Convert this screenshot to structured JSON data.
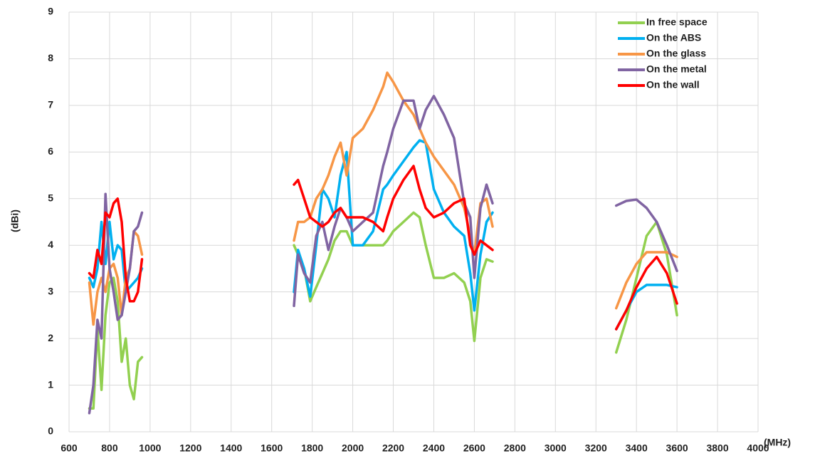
{
  "chart_data": {
    "type": "line",
    "x_label": "(MHz)",
    "y_label": "(dBi)",
    "xlim": [
      600,
      4000
    ],
    "xticks": [
      600,
      800,
      1000,
      1200,
      1400,
      1600,
      1800,
      2000,
      2200,
      2400,
      2600,
      2800,
      3000,
      3200,
      3400,
      3600,
      3800,
      4000
    ],
    "ylim": [
      0,
      9
    ],
    "yticks": [
      0,
      1,
      2,
      3,
      4,
      5,
      6,
      7,
      8,
      9
    ],
    "grid": true,
    "legend": "upper right",
    "x": [
      700,
      720,
      740,
      760,
      780,
      800,
      820,
      840,
      860,
      880,
      900,
      920,
      940,
      960,
      1300,
      1710,
      1730,
      1760,
      1790,
      1820,
      1850,
      1880,
      1910,
      1940,
      1970,
      2000,
      2050,
      2100,
      2150,
      2170,
      2200,
      2250,
      2300,
      2330,
      2360,
      2400,
      2450,
      2500,
      2550,
      2580,
      2600,
      2630,
      2660,
      2690,
      3000,
      3300,
      3350,
      3400,
      3450,
      3500,
      3550,
      3600
    ],
    "series": [
      {
        "name": "In free space",
        "color": "#92d050",
        "values": [
          0.5,
          0.5,
          2.2,
          0.9,
          2.5,
          3.2,
          3.3,
          2.8,
          1.5,
          2.0,
          1.0,
          0.7,
          1.5,
          1.6,
          null,
          4.0,
          3.8,
          3.5,
          2.8,
          3.1,
          3.4,
          3.7,
          4.1,
          4.3,
          4.3,
          4.0,
          4.0,
          4.0,
          4.0,
          4.1,
          4.3,
          4.5,
          4.7,
          4.6,
          4.0,
          3.3,
          3.3,
          3.4,
          3.2,
          2.8,
          1.95,
          3.3,
          3.7,
          3.65,
          null,
          1.7,
          2.4,
          3.3,
          4.2,
          4.5,
          3.8,
          2.5
        ]
      },
      {
        "name": "On the ABS",
        "color": "#00b0f0",
        "values": [
          3.3,
          3.1,
          3.5,
          4.5,
          3.6,
          4.5,
          3.7,
          4.0,
          3.9,
          3.0,
          3.1,
          3.2,
          3.3,
          3.5,
          null,
          3.0,
          3.9,
          3.5,
          2.9,
          4.0,
          5.2,
          5.0,
          4.6,
          5.5,
          6.0,
          4.0,
          4.0,
          4.3,
          5.2,
          5.3,
          5.5,
          5.8,
          6.1,
          6.25,
          6.2,
          5.2,
          4.7,
          4.4,
          4.2,
          3.4,
          2.6,
          3.8,
          4.5,
          4.7,
          null,
          2.2,
          2.6,
          3.0,
          3.15,
          3.15,
          3.15,
          3.1
        ]
      },
      {
        "name": "On the glass",
        "color": "#f79646",
        "values": [
          3.2,
          2.3,
          3.0,
          3.3,
          3.0,
          3.5,
          3.6,
          3.3,
          2.5,
          3.3,
          3.5,
          4.3,
          4.2,
          3.8,
          null,
          4.1,
          4.5,
          4.5,
          4.6,
          5.0,
          5.2,
          5.5,
          5.9,
          6.2,
          5.5,
          6.3,
          6.5,
          6.9,
          7.4,
          7.7,
          7.5,
          7.1,
          6.8,
          6.5,
          6.2,
          5.9,
          5.6,
          5.3,
          4.8,
          4.2,
          3.8,
          4.9,
          5.0,
          4.4,
          null,
          2.65,
          3.2,
          3.6,
          3.85,
          3.85,
          3.85,
          3.75
        ]
      },
      {
        "name": "On the metal",
        "color": "#8064a2",
        "values": [
          0.4,
          1.0,
          2.4,
          2.0,
          5.1,
          3.5,
          3.0,
          2.4,
          2.5,
          3.0,
          3.5,
          4.3,
          4.4,
          4.7,
          null,
          2.7,
          3.8,
          3.4,
          3.2,
          4.2,
          4.5,
          3.9,
          4.4,
          4.8,
          4.6,
          4.3,
          4.5,
          4.7,
          5.7,
          6.0,
          6.5,
          7.1,
          7.1,
          6.5,
          6.9,
          7.2,
          6.8,
          6.3,
          4.9,
          4.6,
          3.3,
          4.8,
          5.3,
          4.9,
          null,
          4.85,
          4.95,
          4.98,
          4.8,
          4.5,
          4.0,
          3.45
        ]
      },
      {
        "name": "On the wall",
        "color": "#ff0000",
        "values": [
          3.4,
          3.3,
          3.9,
          3.6,
          4.7,
          4.6,
          4.9,
          5.0,
          4.5,
          3.3,
          2.8,
          2.8,
          3.0,
          3.7,
          null,
          5.3,
          5.4,
          5.0,
          4.6,
          4.5,
          4.4,
          4.5,
          4.7,
          4.8,
          4.6,
          4.6,
          4.6,
          4.5,
          4.3,
          4.6,
          5.0,
          5.4,
          5.7,
          5.2,
          4.8,
          4.6,
          4.7,
          4.9,
          5.0,
          4.0,
          3.8,
          4.1,
          4.0,
          3.9,
          null,
          2.2,
          2.6,
          3.1,
          3.5,
          3.75,
          3.4,
          2.75
        ]
      }
    ]
  }
}
